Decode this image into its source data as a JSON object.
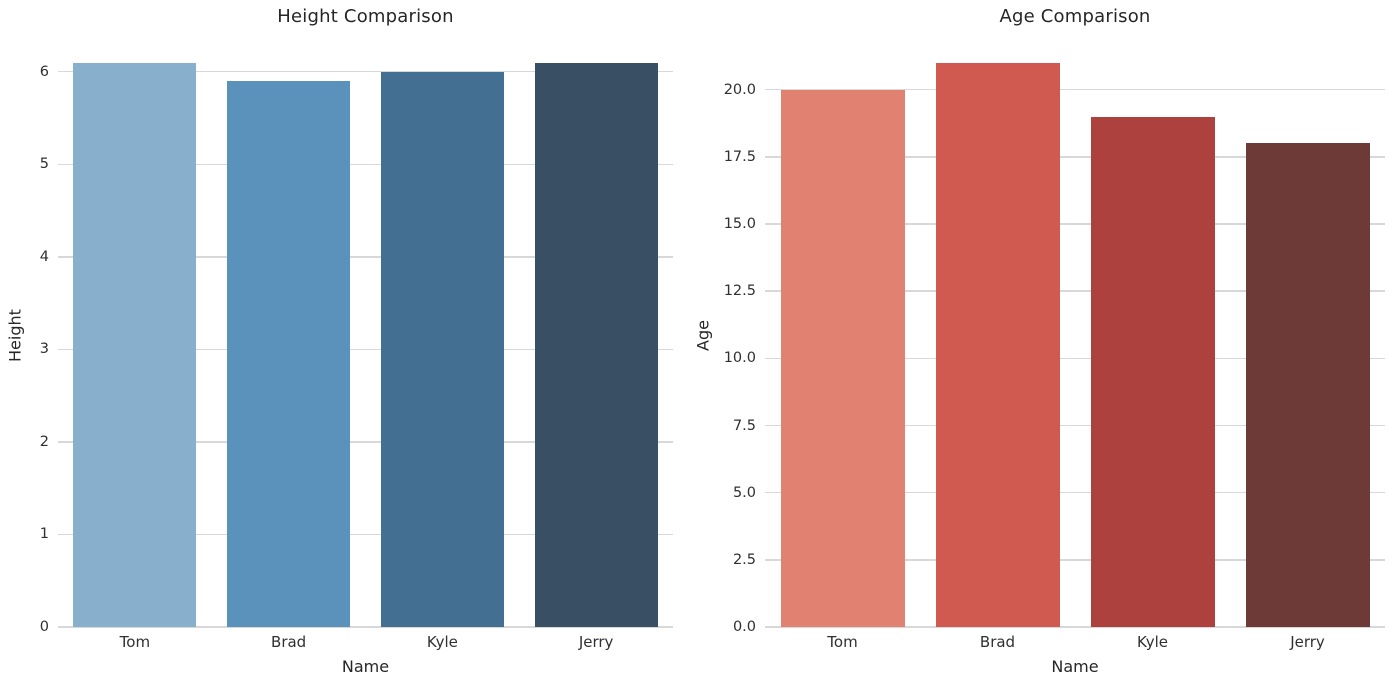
{
  "figure": {
    "background_color": "#ffffff",
    "grid_color": "#d8d8d8",
    "text_color": "#262626"
  },
  "chart_data": [
    {
      "type": "bar",
      "title": "Height Comparison",
      "xlabel": "Name",
      "ylabel": "Height",
      "categories": [
        "Tom",
        "Brad",
        "Kyle",
        "Jerry"
      ],
      "values": [
        6.1,
        5.9,
        6.0,
        6.1
      ],
      "bar_colors": [
        "#88AFCB",
        "#5B92BB",
        "#437092",
        "#394F63"
      ],
      "ylim": [
        0,
        6.3
      ],
      "ytick_values": [
        0,
        1,
        2,
        3,
        4,
        5,
        6
      ],
      "ytick_labels": [
        "0",
        "1",
        "2",
        "3",
        "4",
        "5",
        "6"
      ],
      "grid": true,
      "legend_position": "none"
    },
    {
      "type": "bar",
      "title": "Age Comparison",
      "xlabel": "Name",
      "ylabel": "Age",
      "categories": [
        "Tom",
        "Brad",
        "Kyle",
        "Jerry"
      ],
      "values": [
        20,
        21,
        19,
        18
      ],
      "bar_colors": [
        "#E08172",
        "#D05A50",
        "#AD413D",
        "#6E3A37"
      ],
      "ylim": [
        0,
        21.7
      ],
      "ytick_values": [
        0,
        2.5,
        5,
        7.5,
        10,
        12.5,
        15,
        17.5,
        20
      ],
      "ytick_labels": [
        "0.0",
        "2.5",
        "5.0",
        "7.5",
        "10.0",
        "12.5",
        "15.0",
        "17.5",
        "20.0"
      ],
      "grid": true,
      "legend_position": "none"
    }
  ]
}
